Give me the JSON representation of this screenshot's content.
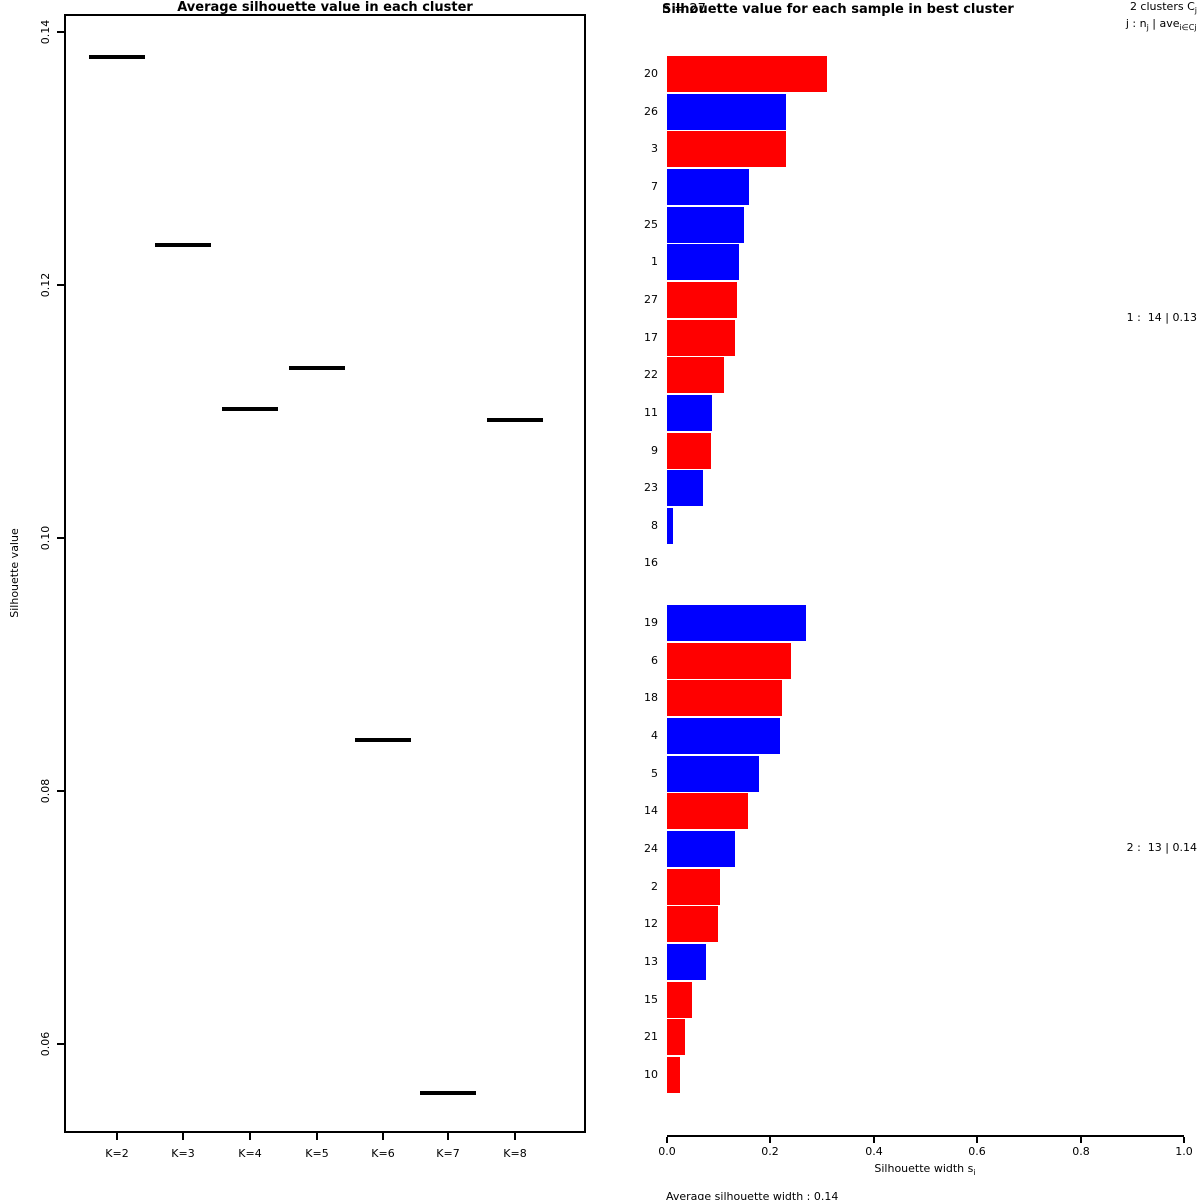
{
  "colors": {
    "red": "#ff0000",
    "blue": "#0000ff",
    "black": "#000000",
    "background": "#ffffff"
  },
  "left_chart": {
    "title": "Average silhouette value in each cluster",
    "ylabel": "Silhouette value"
  },
  "right_chart": {
    "n_label": "n = 27",
    "title": "Silhouette value for each sample in best cluster",
    "header_line1": {
      "text": "2 clusters C",
      "sub": "j"
    },
    "header_line2": [
      {
        "t": "j : n"
      },
      {
        "sub": "j"
      },
      {
        "t": " | ave"
      },
      {
        "sub": "i∈Cj"
      },
      {
        "t": " s"
      },
      {
        "sub": "i"
      }
    ],
    "cluster_annotations": [
      "1 :  14 | 0.13",
      "2 :  13 | 0.14"
    ],
    "xlabel_parts": [
      {
        "t": "Silhouette width s"
      },
      {
        "sub": "i"
      }
    ],
    "footer": "Average silhouette width : 0.14"
  },
  "chart_data": [
    {
      "type": "scatter",
      "marker": "horizontal-segment",
      "title": "Average silhouette value in each cluster",
      "xlabel": "",
      "ylabel": "Silhouette value",
      "categories": [
        "K=2",
        "K=3",
        "K=4",
        "K=5",
        "K=6",
        "K=7",
        "K=8"
      ],
      "values": [
        0.138,
        0.1232,
        0.1102,
        0.1134,
        0.084,
        0.0561,
        0.1093
      ],
      "ylim": [
        0.054,
        0.142
      ],
      "yticks": [
        "0.14",
        "0.12",
        "0.10",
        "0.08",
        "0.06"
      ],
      "ytick_values": [
        0.14,
        0.12,
        0.1,
        0.08,
        0.06
      ],
      "grid": false,
      "box": true
    },
    {
      "type": "bar",
      "orientation": "horizontal",
      "title": "Silhouette value for each sample in best cluster",
      "n": 27,
      "xlabel": "Silhouette width si",
      "xlim": [
        0,
        1
      ],
      "xticks": [
        "0.0",
        "0.2",
        "0.4",
        "0.6",
        "0.8",
        "1.0"
      ],
      "xtick_values": [
        0.0,
        0.2,
        0.4,
        0.6,
        0.8,
        1.0
      ],
      "average_silhouette_width": 0.14,
      "clusters": [
        {
          "id": 1,
          "size": 14,
          "avg_width": 0.13,
          "annotation": "1 :  14 | 0.13",
          "samples": [
            {
              "label": "20",
              "value": 0.31,
              "color": "red"
            },
            {
              "label": "26",
              "value": 0.23,
              "color": "blue"
            },
            {
              "label": "3",
              "value": 0.23,
              "color": "red"
            },
            {
              "label": "7",
              "value": 0.159,
              "color": "blue"
            },
            {
              "label": "25",
              "value": 0.149,
              "color": "blue"
            },
            {
              "label": "1",
              "value": 0.139,
              "color": "blue"
            },
            {
              "label": "27",
              "value": 0.135,
              "color": "red"
            },
            {
              "label": "17",
              "value": 0.132,
              "color": "red"
            },
            {
              "label": "22",
              "value": 0.11,
              "color": "red"
            },
            {
              "label": "11",
              "value": 0.087,
              "color": "blue"
            },
            {
              "label": "9",
              "value": 0.085,
              "color": "red"
            },
            {
              "label": "23",
              "value": 0.07,
              "color": "blue"
            },
            {
              "label": "8",
              "value": 0.012,
              "color": "blue"
            },
            {
              "label": "16",
              "value": 0.0,
              "color": "red"
            }
          ]
        },
        {
          "id": 2,
          "size": 13,
          "avg_width": 0.14,
          "annotation": "2 :  13 | 0.14",
          "samples": [
            {
              "label": "19",
              "value": 0.269,
              "color": "blue"
            },
            {
              "label": "6",
              "value": 0.24,
              "color": "red"
            },
            {
              "label": "18",
              "value": 0.222,
              "color": "red"
            },
            {
              "label": "4",
              "value": 0.218,
              "color": "blue"
            },
            {
              "label": "5",
              "value": 0.178,
              "color": "blue"
            },
            {
              "label": "14",
              "value": 0.157,
              "color": "red"
            },
            {
              "label": "24",
              "value": 0.132,
              "color": "blue"
            },
            {
              "label": "2",
              "value": 0.103,
              "color": "red"
            },
            {
              "label": "12",
              "value": 0.099,
              "color": "red"
            },
            {
              "label": "13",
              "value": 0.075,
              "color": "blue"
            },
            {
              "label": "15",
              "value": 0.048,
              "color": "red"
            },
            {
              "label": "21",
              "value": 0.035,
              "color": "red"
            },
            {
              "label": "10",
              "value": 0.025,
              "color": "red"
            }
          ]
        }
      ]
    }
  ]
}
